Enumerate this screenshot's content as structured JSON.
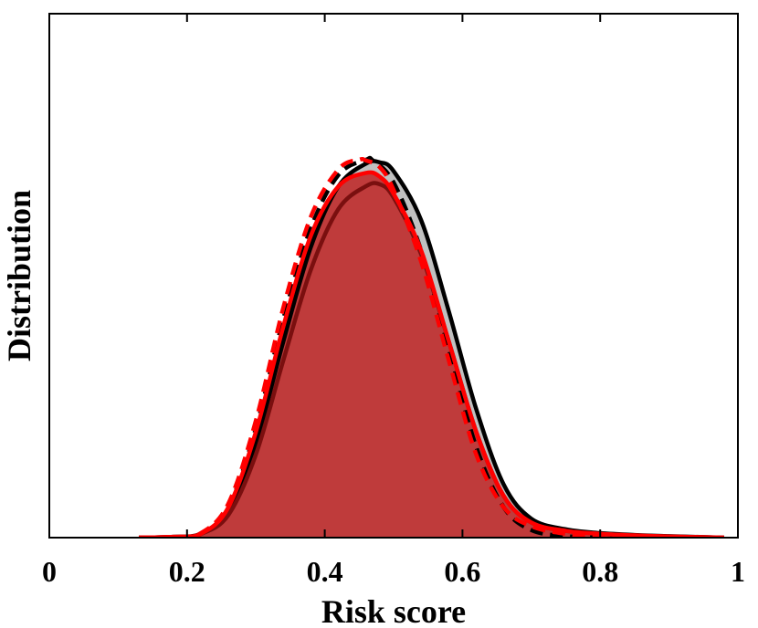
{
  "chart_data": {
    "type": "area",
    "title": "",
    "xlabel": "Risk score",
    "ylabel": "Distribution",
    "xlim": [
      0,
      1
    ],
    "ylim": [
      0,
      1
    ],
    "x_ticks": [
      "0",
      "0.2",
      "0.4",
      "0.6",
      "0.8",
      "1"
    ],
    "y_ticks": [],
    "grid": false,
    "legend": "none",
    "colors": {
      "gray_fill": "#c0c0c0",
      "red_fill": "#bf3b3b",
      "black_line": "#000000",
      "dark_red_line": "#7a0f0f",
      "red_line": "#ff0000"
    },
    "series": [
      {
        "style": "filled",
        "fill": "#c0c0c0",
        "x": [
          0.13,
          0.18,
          0.22,
          0.26,
          0.3,
          0.34,
          0.38,
          0.42,
          0.46,
          0.48,
          0.5,
          0.54,
          0.58,
          0.62,
          0.66,
          0.7,
          0.75,
          0.8,
          0.85,
          0.9,
          0.98
        ],
        "y": [
          0.0,
          0.002,
          0.01,
          0.07,
          0.25,
          0.52,
          0.77,
          0.93,
          0.99,
          0.993,
          0.97,
          0.84,
          0.6,
          0.34,
          0.14,
          0.05,
          0.022,
          0.012,
          0.007,
          0.004,
          0.0
        ]
      },
      {
        "style": "filled",
        "fill": "#bf3b3b",
        "x": [
          0.13,
          0.18,
          0.22,
          0.26,
          0.3,
          0.34,
          0.38,
          0.42,
          0.46,
          0.48,
          0.5,
          0.54,
          0.58,
          0.62,
          0.66,
          0.7,
          0.75,
          0.8,
          0.85,
          0.9,
          0.98
        ],
        "y": [
          0.0,
          0.002,
          0.01,
          0.08,
          0.28,
          0.56,
          0.8,
          0.93,
          0.965,
          0.955,
          0.91,
          0.76,
          0.52,
          0.28,
          0.11,
          0.04,
          0.018,
          0.01,
          0.006,
          0.003,
          0.0
        ]
      },
      {
        "style": "line",
        "color": "#000000",
        "dash": false,
        "x": [
          0.13,
          0.18,
          0.22,
          0.26,
          0.3,
          0.34,
          0.38,
          0.42,
          0.46,
          0.48,
          0.5,
          0.54,
          0.58,
          0.62,
          0.66,
          0.7,
          0.75,
          0.8,
          0.85,
          0.9,
          0.98
        ],
        "y": [
          0.0,
          0.002,
          0.01,
          0.07,
          0.25,
          0.52,
          0.77,
          0.93,
          0.99,
          0.993,
          0.97,
          0.84,
          0.6,
          0.34,
          0.14,
          0.05,
          0.022,
          0.012,
          0.007,
          0.004,
          0.0
        ]
      },
      {
        "style": "line",
        "color": "#000000",
        "dash": true,
        "x": [
          0.13,
          0.18,
          0.22,
          0.26,
          0.3,
          0.34,
          0.38,
          0.42,
          0.46,
          0.47,
          0.5,
          0.54,
          0.58,
          0.62,
          0.66,
          0.7,
          0.75,
          0.8,
          0.85,
          0.9
        ],
        "y": [
          0.0,
          0.002,
          0.01,
          0.08,
          0.29,
          0.58,
          0.82,
          0.96,
          1.0,
          0.998,
          0.94,
          0.76,
          0.5,
          0.24,
          0.08,
          0.02,
          0.004,
          0.001,
          0.0,
          0.0
        ]
      },
      {
        "style": "line",
        "color": "#7a0f0f",
        "dash": false,
        "x": [
          0.13,
          0.18,
          0.22,
          0.26,
          0.3,
          0.34,
          0.38,
          0.42,
          0.46,
          0.48,
          0.5,
          0.54,
          0.58,
          0.62,
          0.66,
          0.7,
          0.75,
          0.8,
          0.85,
          0.9,
          0.98
        ],
        "y": [
          0.0,
          0.002,
          0.01,
          0.06,
          0.22,
          0.47,
          0.71,
          0.87,
          0.93,
          0.935,
          0.9,
          0.75,
          0.52,
          0.28,
          0.11,
          0.04,
          0.018,
          0.01,
          0.006,
          0.003,
          0.0
        ]
      },
      {
        "style": "line",
        "color": "#ff0000",
        "dash": false,
        "x": [
          0.13,
          0.18,
          0.22,
          0.26,
          0.3,
          0.34,
          0.38,
          0.42,
          0.46,
          0.48,
          0.5,
          0.54,
          0.58,
          0.62,
          0.66,
          0.7,
          0.75,
          0.8,
          0.85,
          0.9,
          0.98
        ],
        "y": [
          0.0,
          0.002,
          0.01,
          0.08,
          0.28,
          0.56,
          0.8,
          0.93,
          0.965,
          0.955,
          0.91,
          0.76,
          0.52,
          0.28,
          0.11,
          0.04,
          0.018,
          0.01,
          0.006,
          0.003,
          0.0
        ]
      },
      {
        "style": "line",
        "color": "#ff0000",
        "dash": true,
        "x": [
          0.13,
          0.18,
          0.22,
          0.26,
          0.3,
          0.34,
          0.38,
          0.42,
          0.45,
          0.46,
          0.48,
          0.5,
          0.54,
          0.58,
          0.62,
          0.66,
          0.7,
          0.75,
          0.8,
          0.85,
          0.9
        ],
        "y": [
          0.0,
          0.002,
          0.012,
          0.09,
          0.31,
          0.61,
          0.85,
          0.975,
          1.0,
          0.998,
          0.98,
          0.92,
          0.73,
          0.47,
          0.22,
          0.08,
          0.03,
          0.01,
          0.003,
          0.001,
          0.0
        ]
      }
    ]
  }
}
